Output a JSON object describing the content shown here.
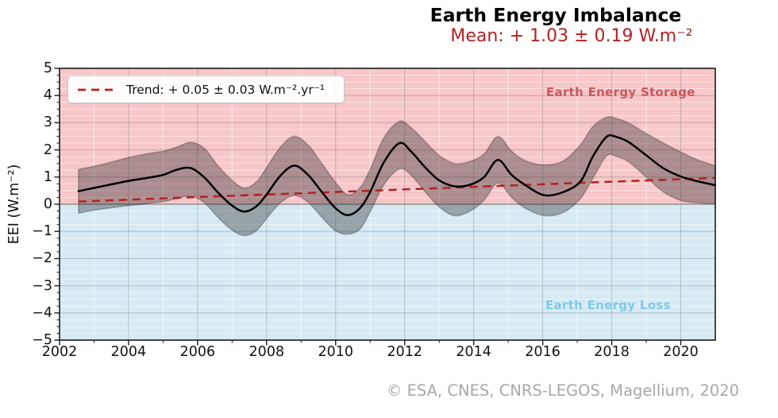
{
  "header": {
    "title": "Earth Energy Imbalance",
    "subtitle": "Mean: + 1.03 ± 0.19 W.m⁻²"
  },
  "footer": {
    "credit": "© ESA, CNES, CNRS-LEGOS, Magellium, 2020"
  },
  "colors": {
    "accent_red": "#b22222",
    "storage_label": "#c65a5d",
    "loss_label": "#7dcaec",
    "storage_fill": "#f7c7ca",
    "loss_fill": "#d7eaf3",
    "eei_line": "#000000",
    "uncertainty_band": "rgba(25,25,25,0.34)",
    "band_edge": "rgba(0,0,0,0.22)",
    "grid_major": "rgba(110,110,110,0.32)",
    "grid_minor": "rgba(255,255,255,0.55)",
    "zero_line": "rgba(80,80,80,0.65)",
    "spine": "#1a1a1a",
    "credit_gray": "#a8a8a8"
  },
  "chart_data": {
    "type": "line",
    "title": "Earth Energy Imbalance",
    "subtitle": "Mean: + 1.03 ± 0.19 W.m⁻²",
    "xlabel": "",
    "ylabel": "EEI (W.m⁻²)",
    "xlim": [
      2002,
      2021
    ],
    "ylim": [
      -5,
      5
    ],
    "xticks": [
      2002,
      2004,
      2006,
      2008,
      2010,
      2012,
      2014,
      2016,
      2018,
      2020
    ],
    "yticks": [
      -5,
      -4,
      -3,
      -2,
      -1,
      0,
      1,
      2,
      3,
      4,
      5
    ],
    "x_minor_step": 1,
    "y_minor_step": 0.25,
    "grid": true,
    "legend_position": "upper left",
    "regions": [
      {
        "label": "Earth Energy Storage",
        "range": [
          0,
          5
        ],
        "color": "#f7c7ca"
      },
      {
        "label": "Earth Energy Loss",
        "range": [
          -5,
          0
        ],
        "color": "#d7eaf3"
      }
    ],
    "series": [
      {
        "name": "EEI",
        "color": "#000000",
        "x": [
          2002.55,
          2003.0,
          2003.5,
          2004.0,
          2004.5,
          2005.0,
          2005.4,
          2005.8,
          2006.2,
          2006.6,
          2007.0,
          2007.35,
          2007.7,
          2008.0,
          2008.4,
          2008.8,
          2009.2,
          2009.6,
          2010.0,
          2010.35,
          2010.7,
          2011.0,
          2011.4,
          2011.85,
          2012.2,
          2012.6,
          2013.0,
          2013.45,
          2013.9,
          2014.3,
          2014.7,
          2015.1,
          2015.5,
          2016.05,
          2016.6,
          2017.1,
          2017.45,
          2017.85,
          2018.15,
          2018.5,
          2019.0,
          2019.5,
          2020.0,
          2020.5,
          2021.0
        ],
        "y": [
          0.48,
          0.6,
          0.73,
          0.86,
          0.96,
          1.08,
          1.27,
          1.33,
          0.98,
          0.42,
          -0.05,
          -0.27,
          -0.08,
          0.36,
          1.05,
          1.42,
          1.08,
          0.45,
          -0.15,
          -0.4,
          -0.15,
          0.45,
          1.55,
          2.25,
          1.92,
          1.35,
          0.88,
          0.66,
          0.72,
          1.0,
          1.63,
          1.08,
          0.7,
          0.33,
          0.45,
          0.85,
          1.75,
          2.48,
          2.47,
          2.28,
          1.8,
          1.32,
          1.02,
          0.84,
          0.7
        ]
      }
    ],
    "uncertainty_band": {
      "name": "EEI uncertainty",
      "color": "rgba(25,25,25,0.34)",
      "upper": [
        1.28,
        1.4,
        1.55,
        1.72,
        1.85,
        1.95,
        2.1,
        2.28,
        2.05,
        1.4,
        0.88,
        0.6,
        0.82,
        1.35,
        2.1,
        2.5,
        2.18,
        1.5,
        0.8,
        0.35,
        0.6,
        1.28,
        2.45,
        3.05,
        2.8,
        2.3,
        1.8,
        1.5,
        1.58,
        1.85,
        2.49,
        1.95,
        1.6,
        1.45,
        1.6,
        2.2,
        2.85,
        3.2,
        3.15,
        2.98,
        2.6,
        2.25,
        1.92,
        1.63,
        1.42
      ],
      "lower": [
        -0.33,
        -0.22,
        -0.13,
        -0.05,
        0.02,
        0.1,
        0.2,
        0.3,
        0.05,
        -0.5,
        -0.95,
        -1.15,
        -0.98,
        -0.52,
        0.05,
        0.32,
        0.08,
        -0.48,
        -0.98,
        -1.1,
        -0.92,
        -0.28,
        0.72,
        1.3,
        1.05,
        0.45,
        -0.1,
        -0.42,
        -0.25,
        0.15,
        0.78,
        0.25,
        -0.15,
        -0.42,
        -0.3,
        0.22,
        0.95,
        1.78,
        1.75,
        1.55,
        1.0,
        0.45,
        0.14,
        0.05,
        0.02
      ]
    },
    "trend_line": {
      "label": "Trend: + 0.05 ± 0.03 W.m⁻².yr⁻¹",
      "style": "dashed",
      "color": "#b22222",
      "x": [
        2002.55,
        2021.0
      ],
      "y": [
        0.1,
        0.97
      ]
    }
  }
}
